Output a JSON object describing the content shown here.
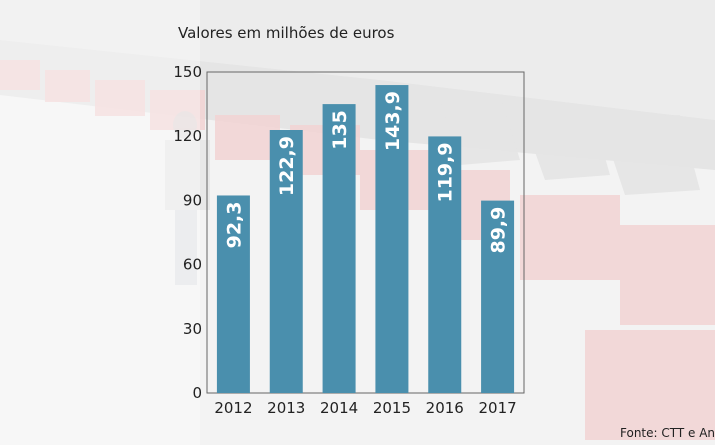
{
  "colors": {
    "bar": "#4a8fad",
    "axis": "#555555",
    "crate": "#d96a6a",
    "overlay": "#ffffff"
  },
  "chart_data": {
    "type": "bar",
    "subtitle": "Valores em milhões de euros",
    "categories": [
      "2012",
      "2013",
      "2014",
      "2015",
      "2016",
      "2017"
    ],
    "values": [
      92.3,
      122.9,
      135,
      143.9,
      119.9,
      89.9
    ],
    "value_labels": [
      "92,3",
      "122,9",
      "135",
      "143,9",
      "119,9",
      "89,9"
    ],
    "yticks": [
      "0",
      "30",
      "60",
      "90",
      "120",
      "150"
    ],
    "ylim": [
      0,
      150
    ],
    "grid": false,
    "source": "Fonte: CTT e Anacom"
  }
}
